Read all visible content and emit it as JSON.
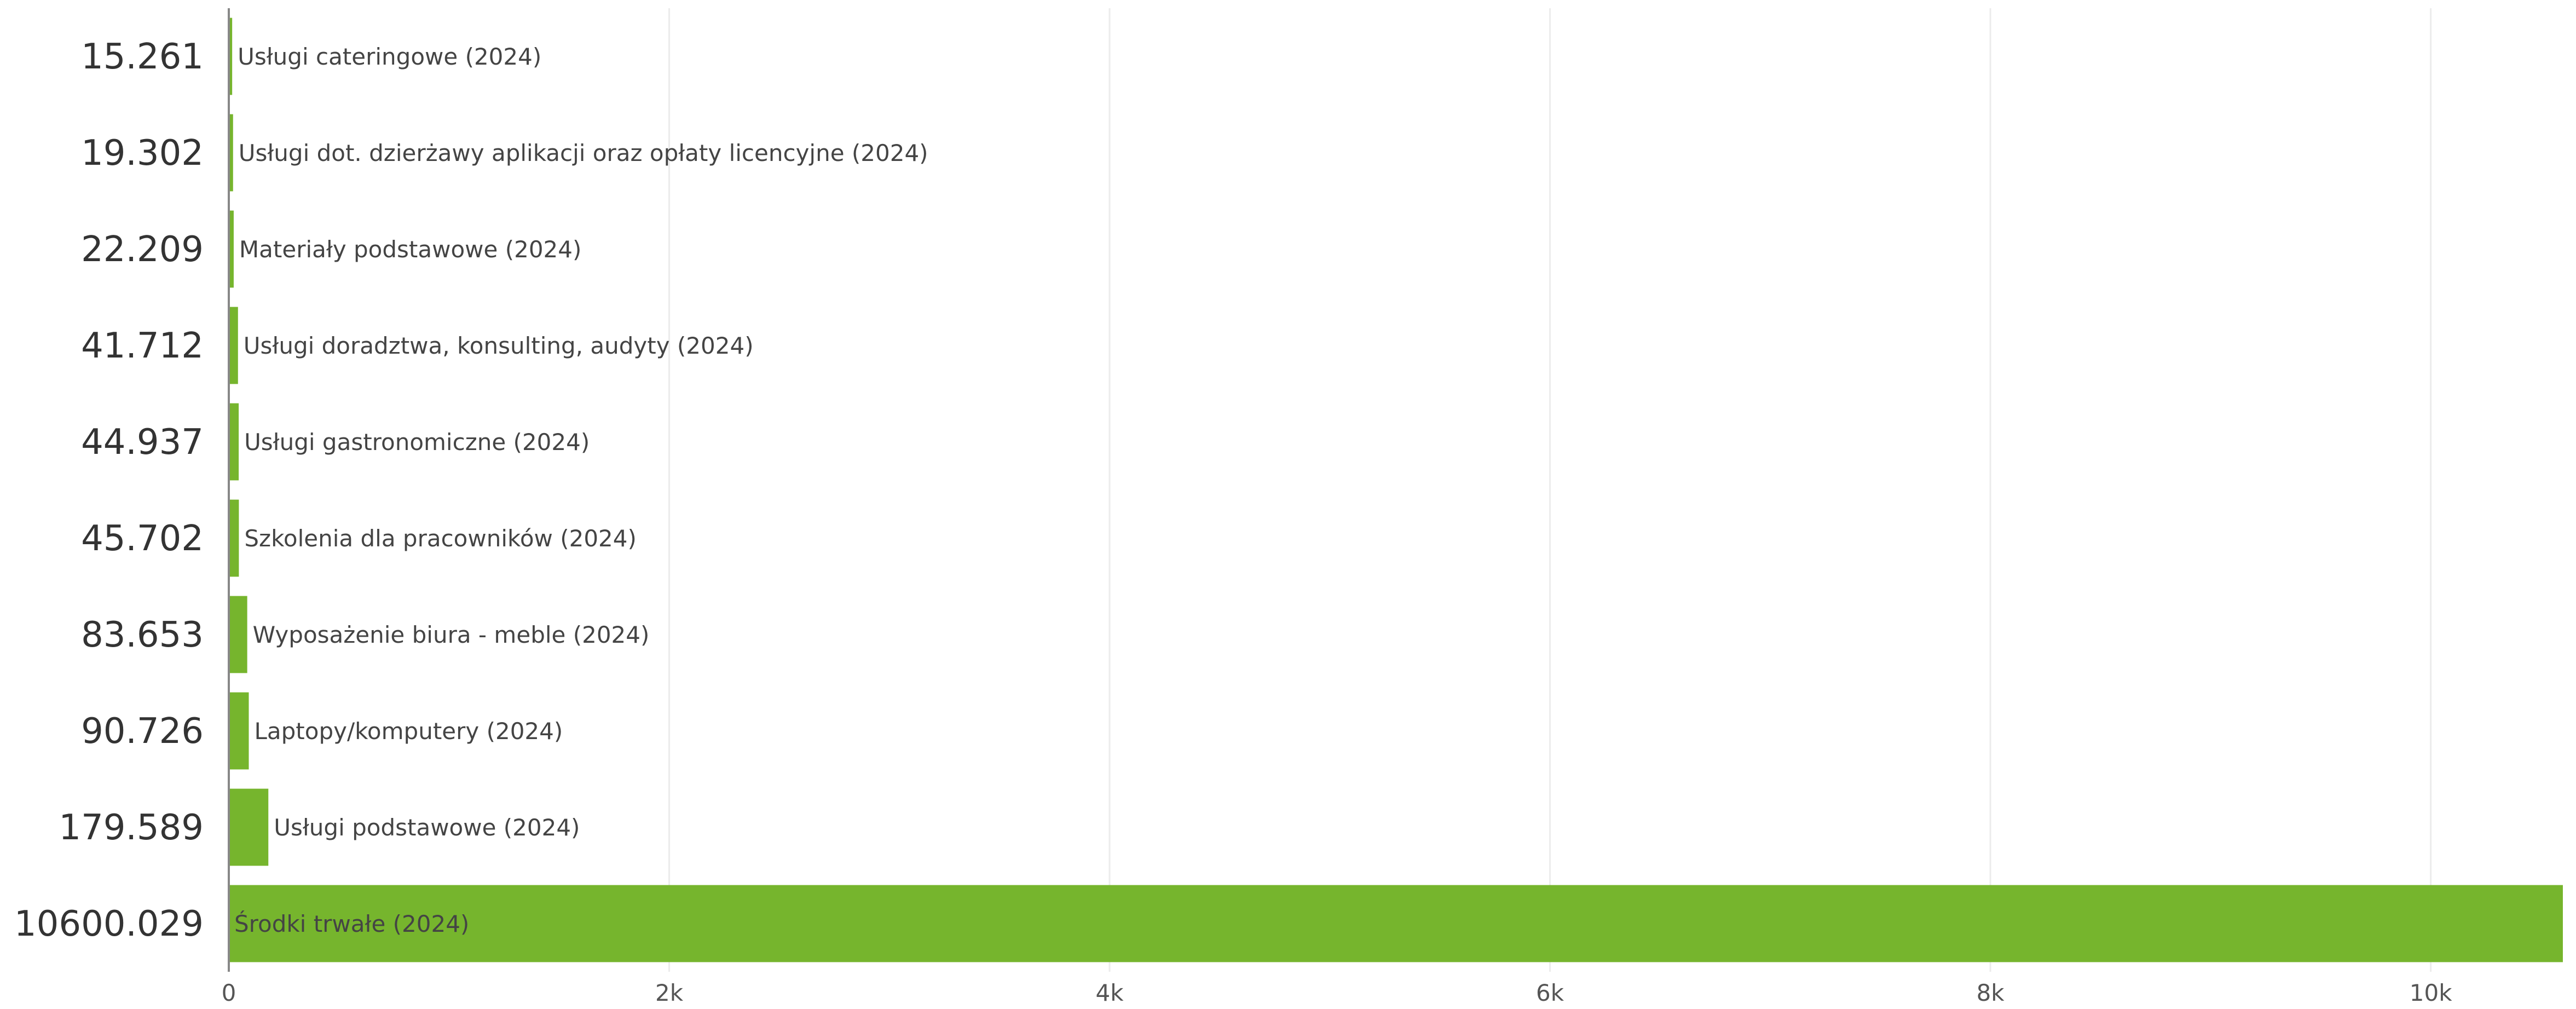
{
  "chart_data": {
    "type": "bar",
    "orientation": "horizontal",
    "bar_color": "#76b52d",
    "grid": "vertical",
    "xlim": [
      0,
      10600
    ],
    "x_ticks": [
      {
        "value": 0,
        "label": "0"
      },
      {
        "value": 2000,
        "label": "2k"
      },
      {
        "value": 4000,
        "label": "4k"
      },
      {
        "value": 6000,
        "label": "6k"
      },
      {
        "value": 8000,
        "label": "8k"
      },
      {
        "value": 10000,
        "label": "10k"
      }
    ],
    "bars": [
      {
        "category": "Usługi cateringowe (2024)",
        "value": 15.261,
        "value_label": "15.261"
      },
      {
        "category": "Usługi dot. dzierżawy aplikacji oraz opłaty licencyjne (2024)",
        "value": 19.302,
        "value_label": "19.302"
      },
      {
        "category": "Materiały podstawowe (2024)",
        "value": 22.209,
        "value_label": "22.209"
      },
      {
        "category": "Usługi doradztwa, konsulting, audyty (2024)",
        "value": 41.712,
        "value_label": "41.712"
      },
      {
        "category": "Usługi gastronomiczne (2024)",
        "value": 44.937,
        "value_label": "44.937"
      },
      {
        "category": "Szkolenia dla pracowników (2024)",
        "value": 45.702,
        "value_label": "45.702"
      },
      {
        "category": "Wyposażenie biura - meble (2024)",
        "value": 83.653,
        "value_label": "83.653"
      },
      {
        "category": "Laptopy/komputery (2024)",
        "value": 90.726,
        "value_label": "90.726"
      },
      {
        "category": "Usługi podstawowe (2024)",
        "value": 179.589,
        "value_label": "179.589"
      },
      {
        "category": "Środki trwałe (2024)",
        "value": 10600.029,
        "value_label": "10600.029"
      }
    ]
  }
}
